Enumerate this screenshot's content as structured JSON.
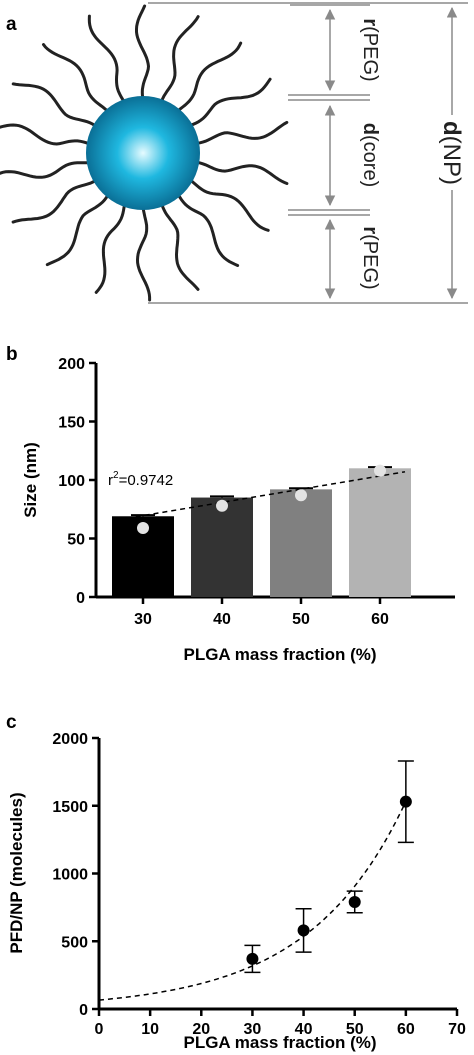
{
  "panels": {
    "a": "a",
    "b": "b",
    "c": "c"
  },
  "schematic": {
    "labels": {
      "r_peg_top_sym": "r",
      "r_peg_top_sub": "(PEG)",
      "d_core_sym": "d",
      "d_core_sub": "(core)",
      "r_peg_bottom_sym": "r",
      "r_peg_bottom_sub": "(PEG)",
      "d_np_sym": "d",
      "d_np_sub": "(NP)"
    },
    "colors": {
      "core_center": "#e6fbff",
      "core_mid": "#1fb8e0",
      "core_edge": "#0a6f96",
      "chains": "#222222",
      "dimension_lines": "#8a8a8a"
    }
  },
  "chart_data": [
    {
      "type": "bar",
      "categories": [
        "30",
        "40",
        "50",
        "60"
      ],
      "values": [
        69,
        85,
        92,
        110
      ],
      "errors": [
        1,
        1,
        1,
        1
      ],
      "points": [
        59,
        78,
        87,
        108
      ],
      "bar_colors": [
        "#000000",
        "#333333",
        "#808080",
        "#b3b3b3"
      ],
      "point_color": "#e3e3e3",
      "fit_line": {
        "style": "dashed",
        "from": [
          30,
          66
        ],
        "to": [
          60,
          107
        ]
      },
      "annotation": {
        "prefix": "r",
        "superscript": "2",
        "suffix": "=0.9742"
      },
      "xlabel": "PLGA mass fraction (%)",
      "ylabel": "Size (nm)",
      "ylim": [
        0,
        200
      ],
      "yticks": [
        "0",
        "50",
        "100",
        "150",
        "200"
      ],
      "grid": false
    },
    {
      "type": "scatter",
      "x": [
        30,
        40,
        50,
        60
      ],
      "y": [
        370,
        580,
        790,
        1530
      ],
      "errors": [
        100,
        160,
        80,
        300
      ],
      "point_color": "#000000",
      "fit_curve": {
        "style": "dashed",
        "type": "exponential",
        "a": 66,
        "b": 0.0524
      },
      "xlabel": "PLGA mass fraction (%)",
      "ylabel": "PFD/NP (molecules)",
      "xlim": [
        0,
        70
      ],
      "ylim": [
        0,
        2000
      ],
      "xticks": [
        "0",
        "10",
        "20",
        "30",
        "40",
        "50",
        "60",
        "70"
      ],
      "yticks": [
        "0",
        "500",
        "1000",
        "1500",
        "2000"
      ],
      "grid": false
    }
  ]
}
